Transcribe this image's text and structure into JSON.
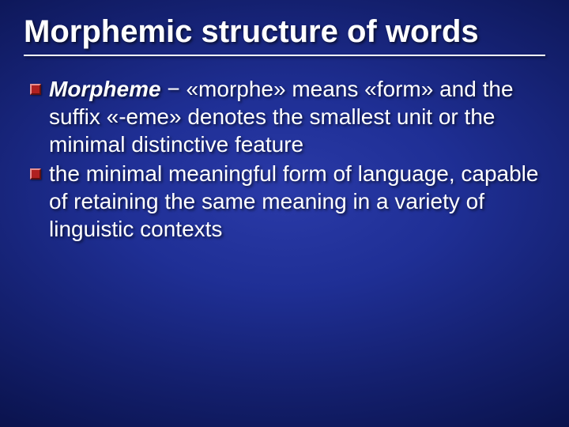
{
  "slide": {
    "title": "Morphemic structure of words",
    "title_fontsize": 40,
    "title_color": "#ffffff",
    "underline_color": "#ffffff",
    "background_gradient": {
      "type": "radial",
      "stops": [
        "#2a3aa8",
        "#1f2f95",
        "#14206f",
        "#0b1450",
        "#050a30"
      ]
    },
    "body_fontsize": 28,
    "body_color": "#ffffff",
    "bullet_color": "#b02020",
    "bullet_highlight": "#e89090",
    "bullet_shadow": "#601010",
    "bullets": [
      {
        "term": "Morpheme",
        "rest": " − «morphe» means «form» and the suffix «-eme» denotes the smallest unit or the minimal distinctive feature"
      },
      {
        "term": "",
        "rest": "the minimal meaningful form of language, capable of retaining the same meaning in a variety of linguistic contexts"
      }
    ]
  }
}
